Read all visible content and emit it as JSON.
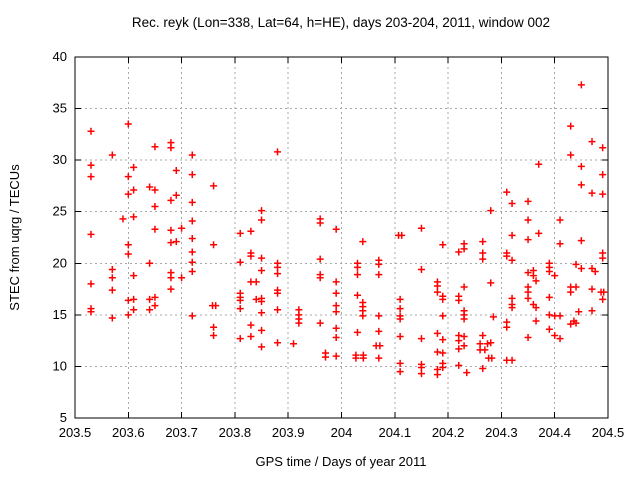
{
  "chart_data": {
    "type": "scatter",
    "title": "Rec. reyk (Lon=338, Lat=64, h=HE), days 203-204, 2011, window 002",
    "xlabel": "GPS time / Days of year 2011",
    "ylabel": "STEC from uqrg / TECUs",
    "xlim": [
      203.5,
      204.5
    ],
    "ylim": [
      5,
      40
    ],
    "x_tick_values": [
      203.5,
      203.6,
      203.7,
      203.8,
      203.9,
      204.0,
      204.1,
      204.2,
      204.3,
      204.4,
      204.5
    ],
    "x_tick_labels": [
      "203.5",
      "203.6",
      "203.7",
      "203.8",
      "203.9",
      "204",
      "204.1",
      "204.2",
      "204.3",
      "204.4",
      "204.5"
    ],
    "y_tick_values": [
      5,
      10,
      15,
      20,
      25,
      30,
      35,
      40
    ],
    "y_tick_labels": [
      "5",
      "10",
      "15",
      "20",
      "25",
      "30",
      "35",
      "40"
    ],
    "grid": true,
    "legend": "none",
    "marker": "plus",
    "colors": {
      "marker": "#ff0000",
      "grid": "#a8a8a8",
      "axis": "#000000",
      "text": "#000000",
      "background": "#ffffff"
    },
    "points": [
      [
        203.53,
        32.8
      ],
      [
        203.6,
        33.5
      ],
      [
        203.57,
        30.5
      ],
      [
        203.53,
        29.5
      ],
      [
        203.53,
        28.4
      ],
      [
        203.65,
        31.3
      ],
      [
        203.68,
        31.7
      ],
      [
        203.68,
        31.2
      ],
      [
        203.72,
        30.5
      ],
      [
        203.61,
        29.3
      ],
      [
        203.6,
        28.4
      ],
      [
        203.69,
        29.0
      ],
      [
        203.72,
        28.6
      ],
      [
        203.61,
        27.1
      ],
      [
        203.64,
        27.4
      ],
      [
        203.65,
        27.1
      ],
      [
        203.6,
        26.7
      ],
      [
        203.68,
        26.1
      ],
      [
        203.69,
        26.6
      ],
      [
        203.72,
        25.9
      ],
      [
        203.65,
        25.5
      ],
      [
        203.59,
        24.3
      ],
      [
        203.61,
        24.5
      ],
      [
        203.72,
        24.1
      ],
      [
        203.65,
        23.3
      ],
      [
        203.68,
        23.2
      ],
      [
        203.7,
        23.4
      ],
      [
        203.53,
        22.8
      ],
      [
        203.88,
        30.8
      ],
      [
        203.76,
        27.5
      ],
      [
        203.85,
        25.1
      ],
      [
        203.85,
        24.2
      ],
      [
        203.96,
        24.3
      ],
      [
        203.96,
        23.9
      ],
      [
        203.83,
        23.1
      ],
      [
        203.81,
        22.9
      ],
      [
        203.99,
        23.3
      ],
      [
        204.15,
        23.4
      ],
      [
        204.107,
        22.7
      ],
      [
        204.113,
        22.7
      ],
      [
        204.45,
        37.3
      ],
      [
        204.43,
        33.3
      ],
      [
        204.47,
        31.8
      ],
      [
        204.49,
        31.2
      ],
      [
        204.43,
        30.5
      ],
      [
        204.37,
        29.6
      ],
      [
        204.45,
        29.4
      ],
      [
        204.49,
        28.6
      ],
      [
        204.45,
        27.6
      ],
      [
        204.47,
        26.8
      ],
      [
        204.49,
        26.7
      ],
      [
        204.31,
        26.9
      ],
      [
        204.32,
        25.8
      ],
      [
        204.35,
        26.0
      ],
      [
        204.28,
        25.1
      ],
      [
        204.35,
        24.2
      ],
      [
        204.41,
        24.2
      ],
      [
        204.32,
        22.7
      ],
      [
        204.37,
        22.9
      ],
      [
        203.6,
        21.8
      ],
      [
        203.6,
        20.9
      ],
      [
        203.68,
        22.0
      ],
      [
        203.69,
        22.1
      ],
      [
        203.72,
        22.4
      ],
      [
        203.72,
        21.1
      ],
      [
        203.72,
        20.1
      ],
      [
        203.72,
        19.2
      ],
      [
        203.64,
        20.0
      ],
      [
        203.57,
        19.4
      ],
      [
        203.57,
        18.6
      ],
      [
        203.61,
        18.8
      ],
      [
        203.68,
        19.1
      ],
      [
        203.68,
        18.6
      ],
      [
        203.7,
        18.6
      ],
      [
        203.53,
        18.0
      ],
      [
        203.57,
        17.4
      ],
      [
        203.68,
        17.5
      ],
      [
        203.6,
        16.4
      ],
      [
        203.61,
        16.5
      ],
      [
        203.64,
        16.5
      ],
      [
        203.65,
        16.7
      ],
      [
        203.65,
        15.9
      ],
      [
        203.64,
        15.5
      ],
      [
        203.61,
        15.5
      ],
      [
        203.53,
        15.6
      ],
      [
        203.53,
        15.3
      ],
      [
        203.57,
        14.7
      ],
      [
        203.6,
        15.0
      ],
      [
        203.72,
        14.9
      ],
      [
        203.76,
        21.8
      ],
      [
        203.83,
        21.0
      ],
      [
        203.83,
        20.7
      ],
      [
        203.85,
        20.5
      ],
      [
        203.81,
        20.1
      ],
      [
        203.88,
        20.0
      ],
      [
        203.88,
        19.6
      ],
      [
        203.85,
        19.3
      ],
      [
        203.88,
        19.0
      ],
      [
        203.83,
        18.2
      ],
      [
        203.84,
        18.2
      ],
      [
        203.88,
        17.4
      ],
      [
        203.88,
        17.1
      ],
      [
        203.81,
        17.1
      ],
      [
        203.81,
        16.7
      ],
      [
        203.81,
        16.4
      ],
      [
        203.84,
        16.5
      ],
      [
        203.85,
        16.6
      ],
      [
        203.85,
        16.3
      ],
      [
        203.758,
        15.9
      ],
      [
        203.764,
        15.9
      ],
      [
        203.81,
        15.6
      ],
      [
        203.85,
        15.2
      ],
      [
        203.88,
        15.5
      ],
      [
        203.92,
        15.5
      ],
      [
        203.92,
        15.0
      ],
      [
        203.92,
        14.6
      ],
      [
        203.92,
        14.2
      ],
      [
        203.96,
        20.4
      ],
      [
        203.96,
        18.9
      ],
      [
        203.96,
        18.6
      ],
      [
        203.99,
        18.2
      ],
      [
        203.99,
        17.1
      ],
      [
        203.99,
        15.9
      ],
      [
        203.99,
        15.3
      ],
      [
        203.76,
        13.8
      ],
      [
        203.76,
        13.0
      ],
      [
        203.83,
        14.0
      ],
      [
        203.85,
        13.5
      ],
      [
        203.83,
        12.9
      ],
      [
        203.81,
        12.7
      ],
      [
        203.85,
        11.9
      ],
      [
        203.88,
        12.3
      ],
      [
        203.91,
        12.2
      ],
      [
        203.96,
        14.2
      ],
      [
        203.99,
        13.7
      ],
      [
        203.99,
        12.8
      ],
      [
        203.97,
        11.3
      ],
      [
        203.97,
        10.9
      ],
      [
        203.99,
        11.0
      ],
      [
        204.04,
        22.1
      ],
      [
        204.19,
        21.8
      ],
      [
        204.22,
        21.1
      ],
      [
        204.23,
        21.9
      ],
      [
        204.23,
        21.4
      ],
      [
        204.03,
        20.0
      ],
      [
        204.03,
        19.6
      ],
      [
        204.03,
        18.9
      ],
      [
        204.07,
        20.3
      ],
      [
        204.07,
        19.9
      ],
      [
        204.07,
        18.9
      ],
      [
        204.15,
        19.4
      ],
      [
        204.18,
        18.2
      ],
      [
        204.18,
        17.8
      ],
      [
        204.18,
        17.2
      ],
      [
        204.19,
        16.8
      ],
      [
        204.19,
        16.5
      ],
      [
        204.23,
        17.7
      ],
      [
        204.22,
        16.8
      ],
      [
        204.22,
        16.4
      ],
      [
        204.03,
        16.9
      ],
      [
        204.04,
        16.2
      ],
      [
        204.04,
        15.8
      ],
      [
        204.04,
        15.4
      ],
      [
        204.04,
        14.9
      ],
      [
        204.07,
        14.9
      ],
      [
        204.11,
        16.5
      ],
      [
        204.11,
        15.6
      ],
      [
        204.11,
        14.9
      ],
      [
        204.11,
        14.6
      ],
      [
        204.19,
        14.9
      ],
      [
        204.23,
        15.4
      ],
      [
        204.23,
        15.0
      ],
      [
        204.23,
        14.6
      ],
      [
        204.03,
        13.3
      ],
      [
        204.07,
        13.4
      ],
      [
        204.065,
        12.0
      ],
      [
        204.072,
        12.0
      ],
      [
        204.11,
        12.9
      ],
      [
        204.15,
        12.7
      ],
      [
        204.18,
        13.2
      ],
      [
        204.19,
        12.6
      ],
      [
        204.22,
        13.0
      ],
      [
        204.23,
        12.9
      ],
      [
        204.22,
        12.5
      ],
      [
        204.23,
        12.0
      ],
      [
        204.22,
        11.7
      ],
      [
        204.18,
        11.4
      ],
      [
        204.19,
        11.3
      ],
      [
        204.027,
        11.1
      ],
      [
        204.041,
        11.1
      ],
      [
        204.027,
        10.8
      ],
      [
        204.041,
        10.8
      ],
      [
        204.07,
        10.8
      ],
      [
        204.11,
        10.3
      ],
      [
        204.11,
        9.5
      ],
      [
        204.15,
        10.2
      ],
      [
        204.15,
        9.9
      ],
      [
        204.15,
        9.3
      ],
      [
        204.18,
        9.7
      ],
      [
        204.18,
        9.2
      ],
      [
        204.19,
        10.3
      ],
      [
        204.19,
        9.9
      ],
      [
        204.22,
        10.1
      ],
      [
        204.235,
        9.4
      ],
      [
        204.265,
        22.1
      ],
      [
        204.265,
        21.0
      ],
      [
        204.265,
        20.4
      ],
      [
        204.35,
        22.3
      ],
      [
        204.41,
        21.9
      ],
      [
        204.45,
        22.2
      ],
      [
        204.31,
        21.0
      ],
      [
        204.31,
        20.7
      ],
      [
        204.32,
        20.3
      ],
      [
        204.49,
        21.0
      ],
      [
        204.49,
        20.5
      ],
      [
        204.35,
        19.1
      ],
      [
        204.36,
        19.3
      ],
      [
        204.36,
        18.8
      ],
      [
        204.365,
        18.3
      ],
      [
        204.39,
        20.0
      ],
      [
        204.39,
        19.6
      ],
      [
        204.39,
        19.2
      ],
      [
        204.4,
        18.8
      ],
      [
        204.44,
        19.9
      ],
      [
        204.45,
        19.5
      ],
      [
        204.47,
        19.5
      ],
      [
        204.476,
        19.2
      ],
      [
        204.47,
        17.5
      ],
      [
        204.487,
        17.2
      ],
      [
        204.492,
        17.2
      ],
      [
        204.49,
        16.5
      ],
      [
        204.28,
        18.1
      ],
      [
        204.32,
        16.6
      ],
      [
        204.35,
        16.6
      ],
      [
        204.35,
        17.2
      ],
      [
        204.35,
        17.7
      ],
      [
        204.43,
        17.7
      ],
      [
        204.43,
        17.2
      ],
      [
        204.44,
        17.7
      ],
      [
        204.32,
        16.0
      ],
      [
        204.32,
        15.7
      ],
      [
        204.36,
        16.0
      ],
      [
        204.365,
        15.7
      ],
      [
        204.39,
        16.7
      ],
      [
        204.39,
        15.0
      ],
      [
        204.4,
        14.9
      ],
      [
        204.41,
        14.9
      ],
      [
        204.445,
        15.3
      ],
      [
        204.47,
        15.4
      ],
      [
        204.285,
        14.8
      ],
      [
        204.31,
        14.3
      ],
      [
        204.31,
        13.8
      ],
      [
        204.365,
        14.4
      ],
      [
        204.39,
        13.6
      ],
      [
        204.43,
        14.1
      ],
      [
        204.44,
        14.2
      ],
      [
        204.436,
        14.4
      ],
      [
        204.4,
        13.0
      ],
      [
        204.265,
        13.0
      ],
      [
        204.26,
        12.2
      ],
      [
        204.274,
        12.2
      ],
      [
        204.28,
        12.3
      ],
      [
        204.26,
        11.6
      ],
      [
        204.269,
        11.6
      ],
      [
        204.35,
        12.8
      ],
      [
        204.41,
        12.7
      ],
      [
        204.276,
        10.8
      ],
      [
        204.282,
        10.8
      ],
      [
        204.31,
        10.6
      ],
      [
        204.32,
        10.6
      ],
      [
        204.265,
        9.8
      ]
    ]
  }
}
